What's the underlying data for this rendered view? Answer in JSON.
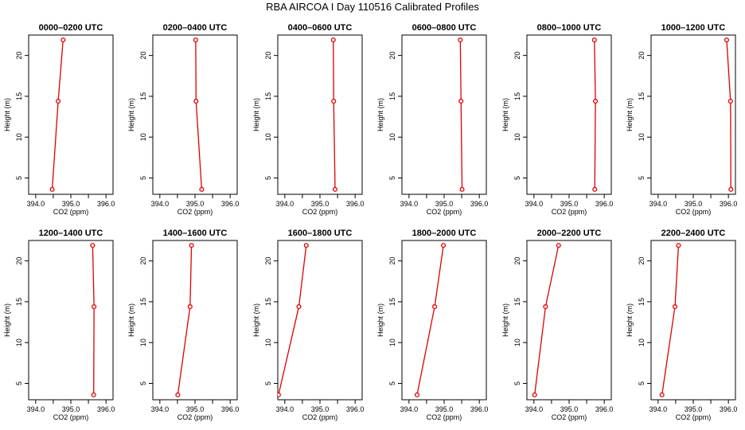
{
  "page": {
    "title": "RBA AIRCOA I  Day 110516  Calibrated Profiles",
    "colors": {
      "profile": "#dd0000",
      "axis": "#000000",
      "background": "#ffffff"
    }
  },
  "chart_data": [
    {
      "type": "line",
      "title": "0000–0200 UTC",
      "xlabel": "CO2 (ppm)",
      "ylabel": "Height (m)",
      "xlim": [
        393.8,
        396.2
      ],
      "ylim": [
        3,
        22.5
      ],
      "xticks": [
        394.0,
        394.5,
        395.0,
        395.5,
        396.0
      ],
      "xtick_labels": [
        "394.0",
        "",
        "395.0",
        "",
        "396.0"
      ],
      "yticks": [
        5,
        10,
        15,
        20
      ],
      "ytick_labels": [
        "5",
        "10",
        "15",
        "20"
      ],
      "series": [
        {
          "x": [
            394.47,
            394.64,
            394.78
          ],
          "y": [
            3.6,
            14.4,
            21.9
          ]
        }
      ]
    },
    {
      "type": "line",
      "title": "0200–0400 UTC",
      "xlabel": "CO2 (ppm)",
      "ylabel": "Height (m)",
      "xlim": [
        393.8,
        396.2
      ],
      "ylim": [
        3,
        22.5
      ],
      "xticks": [
        394.0,
        394.5,
        395.0,
        395.5,
        396.0
      ],
      "xtick_labels": [
        "394.0",
        "",
        "395.0",
        "",
        "396.0"
      ],
      "yticks": [
        5,
        10,
        15,
        20
      ],
      "ytick_labels": [
        "5",
        "10",
        "15",
        "20"
      ],
      "series": [
        {
          "x": [
            395.19,
            395.03,
            395.02
          ],
          "y": [
            3.6,
            14.4,
            21.9
          ]
        }
      ]
    },
    {
      "type": "line",
      "title": "0400–0600 UTC",
      "xlabel": "CO2 (ppm)",
      "ylabel": "Height (m)",
      "xlim": [
        393.8,
        396.2
      ],
      "ylim": [
        3,
        22.5
      ],
      "xticks": [
        394.0,
        394.5,
        395.0,
        395.5,
        396.0
      ],
      "xtick_labels": [
        "394.0",
        "",
        "395.0",
        "",
        "396.0"
      ],
      "yticks": [
        5,
        10,
        15,
        20
      ],
      "ytick_labels": [
        "5",
        "10",
        "15",
        "20"
      ],
      "series": [
        {
          "x": [
            395.43,
            395.39,
            395.38
          ],
          "y": [
            3.6,
            14.4,
            21.9
          ]
        }
      ]
    },
    {
      "type": "line",
      "title": "0600–0800 UTC",
      "xlabel": "CO2 (ppm)",
      "ylabel": "Height (m)",
      "xlim": [
        393.8,
        396.2
      ],
      "ylim": [
        3,
        22.5
      ],
      "xticks": [
        394.0,
        394.5,
        395.0,
        395.5,
        396.0
      ],
      "xtick_labels": [
        "394.0",
        "",
        "395.0",
        "",
        "396.0"
      ],
      "yticks": [
        5,
        10,
        15,
        20
      ],
      "ytick_labels": [
        "5",
        "10",
        "15",
        "20"
      ],
      "series": [
        {
          "x": [
            395.51,
            395.48,
            395.46
          ],
          "y": [
            3.6,
            14.4,
            21.9
          ]
        }
      ]
    },
    {
      "type": "line",
      "title": "0800–1000 UTC",
      "xlabel": "CO2 (ppm)",
      "ylabel": "Height (m)",
      "xlim": [
        393.8,
        396.2
      ],
      "ylim": [
        3,
        22.5
      ],
      "xticks": [
        394.0,
        394.5,
        395.0,
        395.5,
        396.0
      ],
      "xtick_labels": [
        "394.0",
        "",
        "395.0",
        "",
        "396.0"
      ],
      "yticks": [
        5,
        10,
        15,
        20
      ],
      "ytick_labels": [
        "5",
        "10",
        "15",
        "20"
      ],
      "series": [
        {
          "x": [
            395.73,
            395.75,
            395.72
          ],
          "y": [
            3.6,
            14.4,
            21.9
          ]
        }
      ]
    },
    {
      "type": "line",
      "title": "1000–1200 UTC",
      "xlabel": "CO2 (ppm)",
      "ylabel": "Height (m)",
      "xlim": [
        393.8,
        396.2
      ],
      "ylim": [
        3,
        22.5
      ],
      "xticks": [
        394.0,
        394.5,
        395.0,
        395.5,
        396.0
      ],
      "xtick_labels": [
        "394.0",
        "",
        "395.0",
        "",
        "396.0"
      ],
      "yticks": [
        5,
        10,
        15,
        20
      ],
      "ytick_labels": [
        "5",
        "10",
        "15",
        "20"
      ],
      "series": [
        {
          "x": [
            396.07,
            396.06,
            395.95
          ],
          "y": [
            3.6,
            14.4,
            21.9
          ]
        }
      ]
    },
    {
      "type": "line",
      "title": "1200–1400 UTC",
      "xlabel": "CO2 (ppm)",
      "ylabel": "Height (m)",
      "xlim": [
        393.8,
        396.2
      ],
      "ylim": [
        3,
        22.5
      ],
      "xticks": [
        394.0,
        394.5,
        395.0,
        395.5,
        396.0
      ],
      "xtick_labels": [
        "394.0",
        "",
        "395.0",
        "",
        "396.0"
      ],
      "yticks": [
        5,
        10,
        15,
        20
      ],
      "ytick_labels": [
        "5",
        "10",
        "15",
        "20"
      ],
      "series": [
        {
          "x": [
            395.65,
            395.66,
            395.62
          ],
          "y": [
            3.6,
            14.4,
            21.9
          ]
        }
      ]
    },
    {
      "type": "line",
      "title": "1400–1600 UTC",
      "xlabel": "CO2 (ppm)",
      "ylabel": "Height (m)",
      "xlim": [
        393.8,
        396.2
      ],
      "ylim": [
        3,
        22.5
      ],
      "xticks": [
        394.0,
        394.5,
        395.0,
        395.5,
        396.0
      ],
      "xtick_labels": [
        "394.0",
        "",
        "395.0",
        "",
        "396.0"
      ],
      "yticks": [
        5,
        10,
        15,
        20
      ],
      "ytick_labels": [
        "5",
        "10",
        "15",
        "20"
      ],
      "series": [
        {
          "x": [
            394.51,
            394.86,
            394.9
          ],
          "y": [
            3.6,
            14.4,
            21.9
          ]
        }
      ]
    },
    {
      "type": "line",
      "title": "1600–1800 UTC",
      "xlabel": "CO2 (ppm)",
      "ylabel": "Height (m)",
      "xlim": [
        393.8,
        396.2
      ],
      "ylim": [
        3,
        22.5
      ],
      "xticks": [
        394.0,
        394.5,
        395.0,
        395.5,
        396.0
      ],
      "xtick_labels": [
        "394.0",
        "",
        "395.0",
        "",
        "396.0"
      ],
      "yticks": [
        5,
        10,
        15,
        20
      ],
      "ytick_labels": [
        "5",
        "10",
        "15",
        "20"
      ],
      "series": [
        {
          "x": [
            393.82,
            394.4,
            394.61
          ],
          "y": [
            3.6,
            14.4,
            21.9
          ]
        }
      ]
    },
    {
      "type": "line",
      "title": "1800–2000 UTC",
      "xlabel": "CO2 (ppm)",
      "ylabel": "Height (m)",
      "xlim": [
        393.8,
        396.2
      ],
      "ylim": [
        3,
        22.5
      ],
      "xticks": [
        394.0,
        394.5,
        395.0,
        395.5,
        396.0
      ],
      "xtick_labels": [
        "394.0",
        "",
        "395.0",
        "",
        "396.0"
      ],
      "yticks": [
        5,
        10,
        15,
        20
      ],
      "ytick_labels": [
        "5",
        "10",
        "15",
        "20"
      ],
      "series": [
        {
          "x": [
            394.23,
            394.73,
            394.98
          ],
          "y": [
            3.6,
            14.4,
            21.9
          ]
        }
      ]
    },
    {
      "type": "line",
      "title": "2000–2200 UTC",
      "xlabel": "CO2 (ppm)",
      "ylabel": "Height (m)",
      "xlim": [
        393.8,
        396.2
      ],
      "ylim": [
        3,
        22.5
      ],
      "xticks": [
        394.0,
        394.5,
        395.0,
        395.5,
        396.0
      ],
      "xtick_labels": [
        "394.0",
        "",
        "395.0",
        "",
        "396.0"
      ],
      "yticks": [
        5,
        10,
        15,
        20
      ],
      "ytick_labels": [
        "5",
        "10",
        "15",
        "20"
      ],
      "series": [
        {
          "x": [
            394.02,
            394.33,
            394.7
          ],
          "y": [
            3.6,
            14.4,
            21.9
          ]
        }
      ]
    },
    {
      "type": "line",
      "title": "2200–2400 UTC",
      "xlabel": "CO2 (ppm)",
      "ylabel": "Height (m)",
      "xlim": [
        393.8,
        396.2
      ],
      "ylim": [
        3,
        22.5
      ],
      "xticks": [
        394.0,
        394.5,
        395.0,
        395.5,
        396.0
      ],
      "xtick_labels": [
        "394.0",
        "",
        "395.0",
        "",
        "396.0"
      ],
      "yticks": [
        5,
        10,
        15,
        20
      ],
      "ytick_labels": [
        "5",
        "10",
        "15",
        "20"
      ],
      "series": [
        {
          "x": [
            394.11,
            394.48,
            394.58
          ],
          "y": [
            3.6,
            14.4,
            21.9
          ]
        }
      ]
    }
  ]
}
